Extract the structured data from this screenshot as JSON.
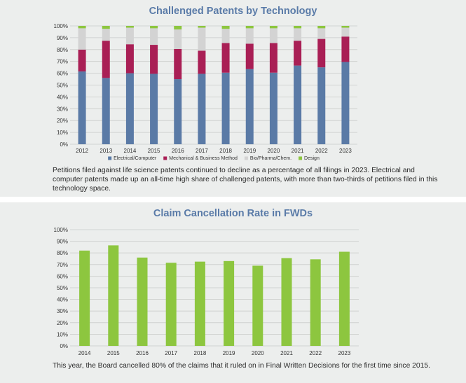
{
  "chart_data": [
    {
      "type": "bar",
      "stacked": true,
      "title": "Challenged Patents by Technology",
      "categories": [
        "2012",
        "2013",
        "2014",
        "2015",
        "2016",
        "2017",
        "2018",
        "2019",
        "2020",
        "2021",
        "2022",
        "2023"
      ],
      "series": [
        {
          "name": "Electrical/Computer",
          "color": "#5a7aa6",
          "values": [
            61.5,
            56,
            60,
            59.5,
            55,
            59.5,
            60.5,
            63.5,
            60.5,
            66.5,
            65,
            69.5
          ]
        },
        {
          "name": "Mechanical & Business Method",
          "color": "#a91f55",
          "values": [
            18.5,
            31.5,
            24.5,
            24.5,
            25.5,
            19.5,
            25,
            21.5,
            25,
            21,
            24,
            21.5
          ]
        },
        {
          "name": "Bio/Pharma/Chem.",
          "color": "#d3d3d3",
          "values": [
            18,
            10,
            14,
            14,
            16.5,
            19.5,
            12,
            13,
            12.5,
            10.5,
            9,
            7.5
          ]
        },
        {
          "name": "Design",
          "color": "#8dc63f",
          "values": [
            2,
            2.5,
            1.5,
            2,
            3,
            1.5,
            2.5,
            2,
            2,
            2,
            2,
            1.5
          ]
        }
      ],
      "yticks": [
        "0%",
        "10%",
        "20%",
        "30%",
        "40%",
        "50%",
        "60%",
        "70%",
        "80%",
        "90%",
        "100%"
      ],
      "ylim": [
        0,
        100
      ],
      "grid": true,
      "legend": "bottom"
    },
    {
      "type": "bar",
      "title": "Claim Cancellation Rate in FWDs",
      "categories": [
        "2014",
        "2015",
        "2016",
        "2017",
        "2018",
        "2019",
        "2020",
        "2021",
        "2022",
        "2023"
      ],
      "values": [
        82,
        86.5,
        76,
        71.5,
        72.5,
        73,
        69,
        75.5,
        74.5,
        81
      ],
      "color": "#8dc63f",
      "yticks": [
        "0%",
        "10%",
        "20%",
        "30%",
        "40%",
        "50%",
        "60%",
        "70%",
        "80%",
        "90%",
        "100%"
      ],
      "ylim": [
        0,
        100
      ],
      "grid": true
    }
  ],
  "captions": {
    "top": "Petitions filed against life science patents continued to decline as a percentage of all filings in 2023. Electrical and computer patents made up an all-time high share of challenged patents, with more than two-thirds of petitions filed in this technology space.",
    "bottom": "This year, the Board cancelled 80% of the claims that it ruled on in Final Written Decisions for the first time since 2015."
  }
}
